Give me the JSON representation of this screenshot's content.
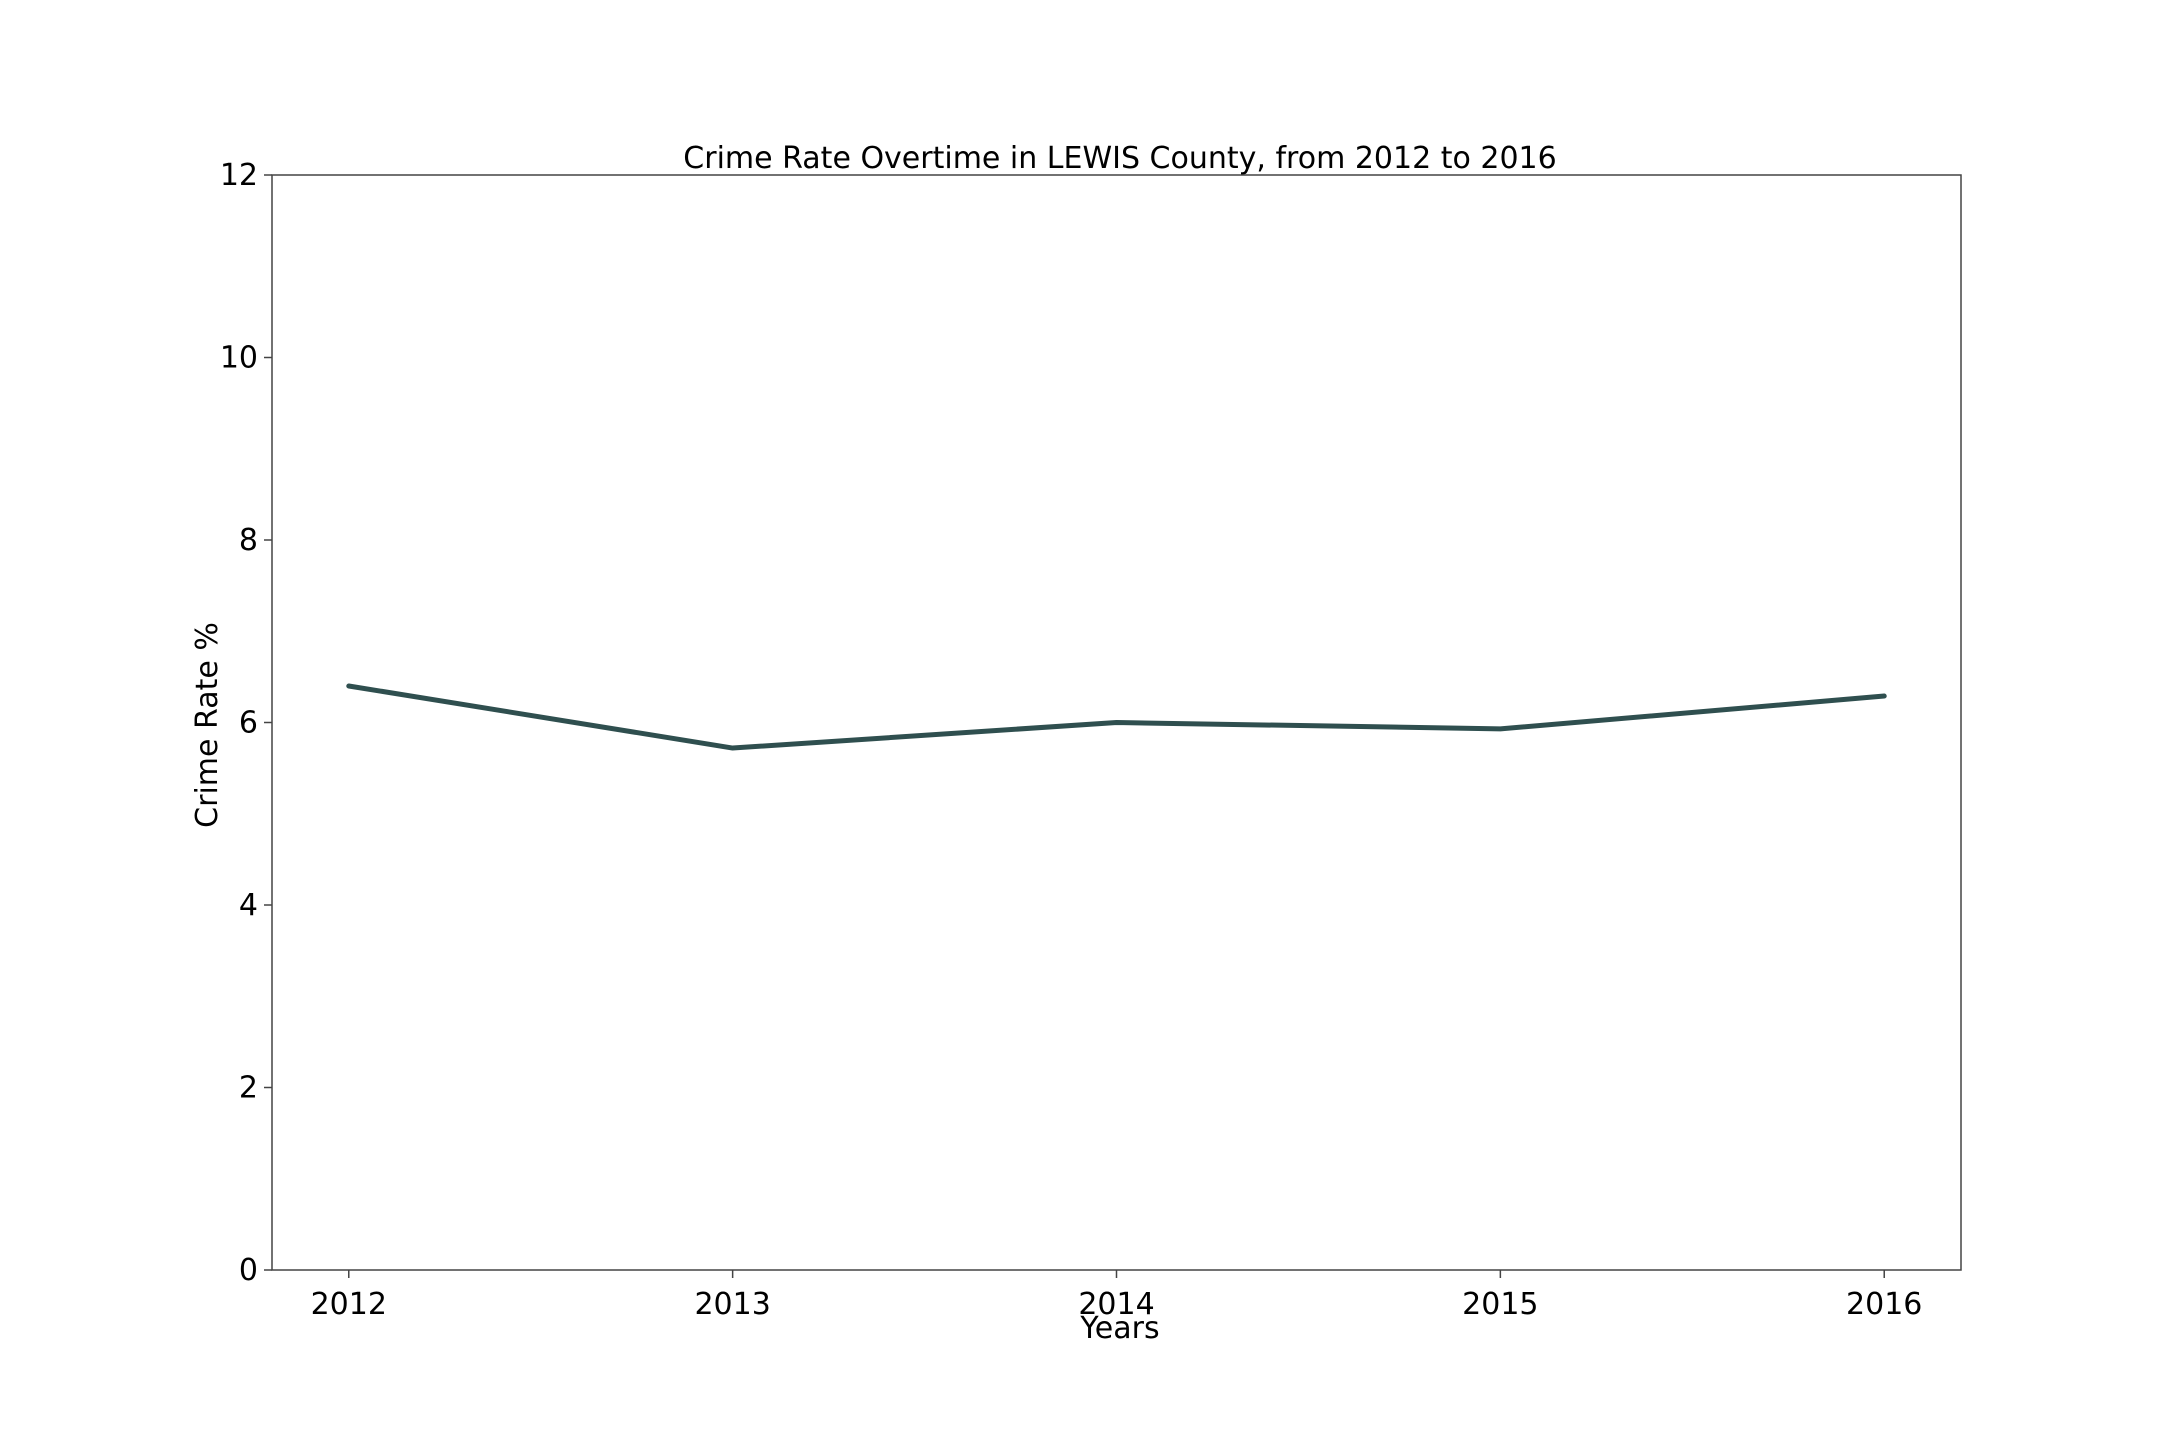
{
  "chart_data": {
    "type": "line",
    "title": "Crime Rate Overtime in LEWIS County, from 2012 to 2016",
    "xlabel": "Years",
    "ylabel": "Crime Rate %",
    "x": [
      "2012",
      "2013",
      "2014",
      "2015",
      "2016"
    ],
    "series": [
      {
        "values": [
          6.4,
          5.72,
          6.0,
          5.93,
          6.29
        ],
        "color": "#2f4f4f"
      }
    ],
    "ylim": [
      0,
      12
    ],
    "yticks": [
      "0",
      "2",
      "4",
      "6",
      "8",
      "10",
      "12"
    ],
    "xlim": [
      -0.2,
      4.2
    ],
    "grid": false,
    "legend": "none"
  }
}
